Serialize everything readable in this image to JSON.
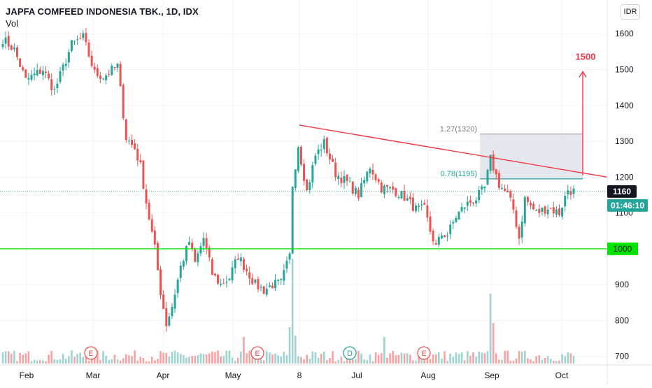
{
  "header": {
    "title": "JAPFA COMFEED INDONESIA TBK., 1D, IDX",
    "volume_label": "Vol"
  },
  "currency_badge": "IDR",
  "colors": {
    "up": "#26a69a",
    "down": "#ef5350",
    "vol_up": "#9fd3cf",
    "vol_down": "#f5a3a3",
    "trendline": "#f23645",
    "support": "#00e400",
    "fib_box": "#e0e3eb",
    "price_label_bg": "#131722",
    "countdown_bg": "#26a69a"
  },
  "chart_data": {
    "type": "candlestick",
    "title": "JAPFA COMFEED INDONESIA TBK., 1D, IDX",
    "currency": "IDR",
    "y_ticks": [
      700,
      800,
      900,
      1000,
      1100,
      1200,
      1300,
      1400,
      1500,
      1600
    ],
    "ylim": [
      680,
      1655
    ],
    "x_tick_labels": [
      "Feb",
      "Mar",
      "Apr",
      "May",
      "8",
      "Jul",
      "Aug",
      "Sep",
      "Oct"
    ],
    "grid": true,
    "last_price": "1160",
    "countdown": "01:46:10",
    "support_level": "1000",
    "fib_levels": [
      {
        "label": "1.27(1320)",
        "value": 1320
      },
      {
        "label": "0.78(1195)",
        "value": 1195
      }
    ],
    "target_label": "1500",
    "target_value": 1500,
    "trendline": {
      "from": {
        "bar": 0.72,
        "price": 1345
      },
      "to": {
        "bar": 1.0,
        "price": 1200
      }
    },
    "event_markers": [
      {
        "label": "E",
        "at": "Mar"
      },
      {
        "label": "E",
        "at": "May"
      },
      {
        "label": "D",
        "at": "Jul"
      },
      {
        "label": "E",
        "at": "Aug"
      }
    ],
    "anchors": [
      [
        0,
        1585
      ],
      [
        4,
        1555
      ],
      [
        8,
        1470
      ],
      [
        14,
        1500
      ],
      [
        18,
        1440
      ],
      [
        24,
        1570
      ],
      [
        28,
        1590
      ],
      [
        32,
        1490
      ],
      [
        35,
        1480
      ],
      [
        40,
        1510
      ],
      [
        43,
        1310
      ],
      [
        46,
        1280
      ],
      [
        48,
        1230
      ],
      [
        50,
        1130
      ],
      [
        53,
        1000
      ],
      [
        55,
        880
      ],
      [
        57,
        790
      ],
      [
        59,
        840
      ],
      [
        62,
        950
      ],
      [
        65,
        1020
      ],
      [
        67,
        960
      ],
      [
        70,
        1030
      ],
      [
        73,
        930
      ],
      [
        76,
        900
      ],
      [
        79,
        920
      ],
      [
        82,
        980
      ],
      [
        85,
        940
      ],
      [
        88,
        900
      ],
      [
        91,
        885
      ],
      [
        94,
        900
      ],
      [
        97,
        905
      ],
      [
        100,
        980
      ],
      [
        101,
        1180
      ],
      [
        103,
        1290
      ],
      [
        106,
        1160
      ],
      [
        109,
        1260
      ],
      [
        112,
        1295
      ],
      [
        116,
        1210
      ],
      [
        120,
        1185
      ],
      [
        124,
        1150
      ],
      [
        128,
        1230
      ],
      [
        132,
        1170
      ],
      [
        136,
        1165
      ],
      [
        140,
        1145
      ],
      [
        144,
        1110
      ],
      [
        147,
        1110
      ],
      [
        149,
        1050
      ],
      [
        151,
        1005
      ],
      [
        153,
        1040
      ],
      [
        155,
        1040
      ],
      [
        158,
        1090
      ],
      [
        161,
        1120
      ],
      [
        165,
        1140
      ],
      [
        168,
        1170
      ],
      [
        170,
        1250
      ],
      [
        173,
        1180
      ],
      [
        176,
        1150
      ],
      [
        178,
        1110
      ],
      [
        180,
        1030
      ],
      [
        182,
        1140
      ],
      [
        186,
        1100
      ],
      [
        190,
        1115
      ],
      [
        194,
        1100
      ],
      [
        197,
        1165
      ],
      [
        199,
        1160
      ]
    ]
  }
}
